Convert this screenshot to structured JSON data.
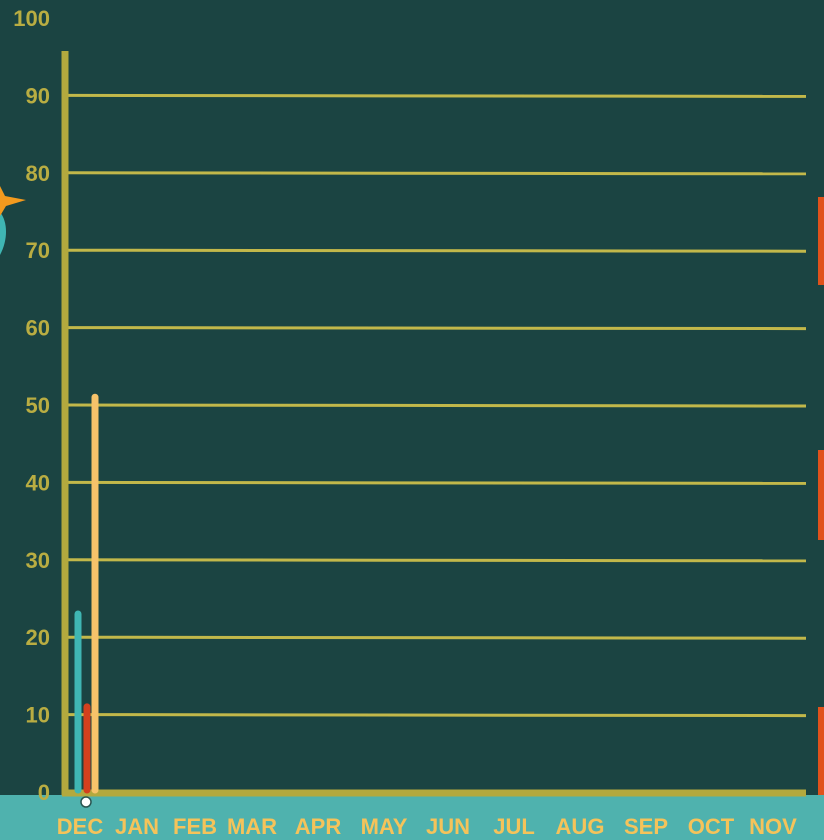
{
  "colors": {
    "background": "#1b4442",
    "axis": "#b3a93e",
    "gridline": "#c2b84a",
    "ytick_text": "#b9ad42",
    "xtick_text": "#f5c35a",
    "footer_band": "#4fb2ae",
    "orange_accent": "#e0521b",
    "star": "#f39a1e",
    "teal_shape": "#3fb6b3"
  },
  "icons": {
    "left_decoration": "starburst-icon",
    "right_decoration": "orange-tab-shapes"
  },
  "chart_data": {
    "type": "bar",
    "categories": [
      "DEC",
      "JAN",
      "FEB",
      "MAR",
      "APR",
      "MAY",
      "JUN",
      "JUL",
      "AUG",
      "SEP",
      "OCT",
      "NOV"
    ],
    "series": [
      {
        "color": "#3fb6b3",
        "values": [
          23,
          0,
          0,
          0,
          0,
          0,
          0,
          0,
          0,
          0,
          0,
          0
        ]
      },
      {
        "color": "#d4401e",
        "values": [
          11,
          0,
          0,
          0,
          0,
          0,
          0,
          0,
          0,
          0,
          0,
          0
        ]
      },
      {
        "color": "#f7c36a",
        "values": [
          51,
          0,
          0,
          0,
          0,
          0,
          0,
          0,
          0,
          0,
          0,
          0
        ]
      }
    ],
    "yticks": [
      0,
      10,
      20,
      30,
      40,
      50,
      60,
      70,
      80,
      90,
      100
    ],
    "ylim": [
      0,
      100
    ],
    "grid": true,
    "legend": "none"
  }
}
